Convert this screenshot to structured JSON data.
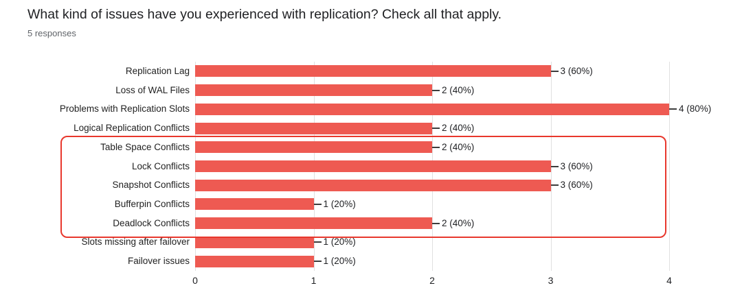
{
  "header": {
    "title": "What kind of issues have you experienced with replication? Check all that apply.",
    "subtitle": "5 responses"
  },
  "chart_data": {
    "type": "bar",
    "orientation": "horizontal",
    "title": "What kind of issues have you experienced with replication? Check all that apply.",
    "subtitle": "5 responses",
    "categories": [
      "Replication Lag",
      "Loss of WAL Files",
      "Problems with Replication Slots",
      "Logical Replication Conflicts",
      "Table Space Conflicts",
      "Lock Conflicts",
      "Snapshot Conflicts",
      "Bufferpin Conflicts",
      "Deadlock Conflicts",
      "Slots missing after failover",
      "Failover issues"
    ],
    "values": [
      3,
      2,
      4,
      2,
      2,
      3,
      3,
      1,
      2,
      1,
      1
    ],
    "value_labels": [
      "3 (60%)",
      "2 (40%)",
      "4 (80%)",
      "2 (40%)",
      "2 (40%)",
      "3 (60%)",
      "3 (60%)",
      "1 (20%)",
      "2 (40%)",
      "1 (20%)",
      "1 (20%)"
    ],
    "xlim": [
      0,
      4
    ],
    "xticks": [
      "0",
      "1",
      "2",
      "3",
      "4"
    ],
    "grid": true,
    "legend": "none",
    "bar_color": "#ee5a52",
    "annotation": {
      "shape": "red-outline-box",
      "color": "#e8372c",
      "row_start_index": 4,
      "row_end_index": 8,
      "highlighted_rows": [
        "Table Space Conflicts",
        "Lock Conflicts",
        "Snapshot Conflicts",
        "Bufferpin Conflicts",
        "Deadlock Conflicts"
      ]
    }
  }
}
